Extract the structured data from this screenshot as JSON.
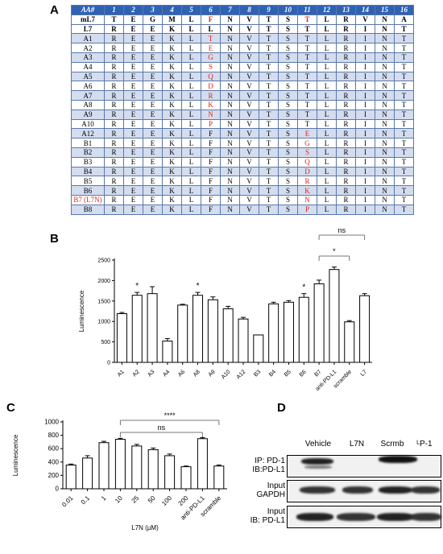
{
  "panels": {
    "a": "A",
    "b": "B",
    "c": "C",
    "d": "D"
  },
  "table": {
    "header": [
      "AA#",
      "1",
      "2",
      "3",
      "4",
      "5",
      "6",
      "7",
      "8",
      "9",
      "10",
      "11",
      "12",
      "13",
      "14",
      "15",
      "16"
    ],
    "rows": [
      {
        "label": "mL7",
        "cells": [
          "T",
          "E",
          "G",
          "M",
          "L",
          "F",
          "N",
          "V",
          "T",
          "S",
          "T",
          "L",
          "R",
          "V",
          "N",
          "A"
        ],
        "red": [
          5,
          10
        ],
        "style": "bold"
      },
      {
        "label": "L7",
        "cells": [
          "R",
          "E",
          "E",
          "K",
          "L",
          "L",
          "N",
          "V",
          "T",
          "S",
          "T",
          "L",
          "R",
          "I",
          "N",
          "T"
        ],
        "red": [],
        "style": "bold"
      },
      {
        "label": "A1",
        "cells": [
          "R",
          "E",
          "E",
          "K",
          "L",
          "T",
          "N",
          "V",
          "T",
          "S",
          "T",
          "L",
          "R",
          "I",
          "N",
          "T"
        ],
        "red": [
          5
        ]
      },
      {
        "label": "A2",
        "cells": [
          "R",
          "E",
          "E",
          "K",
          "L",
          "E",
          "N",
          "V",
          "T",
          "S",
          "T",
          "L",
          "R",
          "I",
          "N",
          "T"
        ],
        "red": [
          5
        ]
      },
      {
        "label": "A3",
        "cells": [
          "R",
          "E",
          "E",
          "K",
          "L",
          "G",
          "N",
          "V",
          "T",
          "S",
          "T",
          "L",
          "R",
          "I",
          "N",
          "T"
        ],
        "red": [
          5
        ]
      },
      {
        "label": "A4",
        "cells": [
          "R",
          "E",
          "E",
          "K",
          "L",
          "S",
          "N",
          "V",
          "T",
          "S",
          "T",
          "L",
          "R",
          "I",
          "N",
          "T"
        ],
        "red": [
          5
        ]
      },
      {
        "label": "A5",
        "cells": [
          "R",
          "E",
          "E",
          "K",
          "L",
          "Q",
          "N",
          "V",
          "T",
          "S",
          "T",
          "L",
          "R",
          "I",
          "N",
          "T"
        ],
        "red": [
          5
        ]
      },
      {
        "label": "A6",
        "cells": [
          "R",
          "E",
          "E",
          "K",
          "L",
          "D",
          "N",
          "V",
          "T",
          "S",
          "T",
          "L",
          "R",
          "I",
          "N",
          "T"
        ],
        "red": [
          5
        ]
      },
      {
        "label": "A7",
        "cells": [
          "R",
          "E",
          "E",
          "K",
          "L",
          "R",
          "N",
          "V",
          "T",
          "S",
          "T",
          "L",
          "R",
          "I",
          "N",
          "T"
        ],
        "red": [
          5
        ]
      },
      {
        "label": "A8",
        "cells": [
          "R",
          "E",
          "E",
          "K",
          "L",
          "K",
          "N",
          "V",
          "T",
          "S",
          "T",
          "L",
          "R",
          "I",
          "N",
          "T"
        ],
        "red": [
          5
        ]
      },
      {
        "label": "A9",
        "cells": [
          "R",
          "E",
          "E",
          "K",
          "L",
          "N",
          "N",
          "V",
          "T",
          "S",
          "T",
          "L",
          "R",
          "I",
          "N",
          "T"
        ],
        "red": [
          5
        ]
      },
      {
        "label": "A10",
        "cells": [
          "R",
          "E",
          "E",
          "K",
          "L",
          "P",
          "N",
          "V",
          "T",
          "S",
          "T",
          "L",
          "R",
          "I",
          "N",
          "T"
        ],
        "red": [
          5
        ]
      },
      {
        "label": "A12",
        "cells": [
          "R",
          "E",
          "E",
          "K",
          "L",
          "F",
          "N",
          "V",
          "T",
          "S",
          "E",
          "L",
          "R",
          "I",
          "N",
          "T"
        ],
        "red": [
          10
        ]
      },
      {
        "label": "B1",
        "cells": [
          "R",
          "E",
          "E",
          "K",
          "L",
          "F",
          "N",
          "V",
          "T",
          "S",
          "G",
          "L",
          "R",
          "I",
          "N",
          "T"
        ],
        "red": [
          10
        ]
      },
      {
        "label": "B2",
        "cells": [
          "R",
          "E",
          "E",
          "K",
          "L",
          "F",
          "N",
          "V",
          "T",
          "S",
          "S",
          "L",
          "R",
          "I",
          "N",
          "T"
        ],
        "red": [
          10
        ]
      },
      {
        "label": "B3",
        "cells": [
          "R",
          "E",
          "E",
          "K",
          "L",
          "F",
          "N",
          "V",
          "T",
          "S",
          "Q",
          "L",
          "R",
          "I",
          "N",
          "T"
        ],
        "red": [
          10
        ]
      },
      {
        "label": "B4",
        "cells": [
          "R",
          "E",
          "E",
          "K",
          "L",
          "F",
          "N",
          "V",
          "T",
          "S",
          "D",
          "L",
          "R",
          "I",
          "N",
          "T"
        ],
        "red": [
          10
        ]
      },
      {
        "label": "B5",
        "cells": [
          "R",
          "E",
          "E",
          "K",
          "L",
          "F",
          "N",
          "V",
          "T",
          "S",
          "R",
          "L",
          "R",
          "I",
          "N",
          "T"
        ],
        "red": [
          10
        ]
      },
      {
        "label": "B6",
        "cells": [
          "R",
          "E",
          "E",
          "K",
          "L",
          "F",
          "N",
          "V",
          "T",
          "S",
          "K",
          "L",
          "R",
          "I",
          "N",
          "T"
        ],
        "red": [
          10
        ]
      },
      {
        "label": "B7 (L7N)",
        "cells": [
          "R",
          "E",
          "E",
          "K",
          "L",
          "F",
          "N",
          "V",
          "T",
          "S",
          "N",
          "L",
          "R",
          "I",
          "N",
          "T"
        ],
        "red": [
          10
        ],
        "labelRed": true
      },
      {
        "label": "B8",
        "cells": [
          "R",
          "E",
          "E",
          "K",
          "L",
          "F",
          "N",
          "V",
          "T",
          "S",
          "P",
          "L",
          "R",
          "I",
          "N",
          "T"
        ],
        "red": [
          10
        ]
      }
    ]
  },
  "chart_data": [
    {
      "type": "bar",
      "ylabel": "Luminescence",
      "ylim": [
        0,
        2500
      ],
      "yticks": [
        0,
        500,
        1000,
        1500,
        2000,
        2500
      ],
      "categories": [
        "A1",
        "A2",
        "A3",
        "A4",
        "A6",
        "A8",
        "A9",
        "A10",
        "A12",
        "B3",
        "B4",
        "B5",
        "B6",
        "B7",
        "anti-PD-L1",
        "scramble",
        "L7"
      ],
      "values": [
        1190,
        1640,
        1680,
        520,
        1400,
        1640,
        1530,
        1310,
        1060,
        670,
        1430,
        1470,
        1590,
        1920,
        2270,
        990,
        1630
      ],
      "errors": [
        30,
        70,
        170,
        60,
        20,
        70,
        70,
        60,
        40,
        0,
        40,
        40,
        90,
        90,
        60,
        30,
        50
      ],
      "stars": [
        {
          "index": 1,
          "label": "*"
        },
        {
          "index": 5,
          "label": "*"
        },
        {
          "index": 12,
          "label": "*"
        }
      ],
      "brackets": [
        {
          "from": 13,
          "to": 16,
          "label": "ns"
        },
        {
          "from": 13,
          "to": 15,
          "label": "*"
        }
      ]
    },
    {
      "type": "bar",
      "ylabel": "Luminescence",
      "xlabel": "L7N (µM)",
      "ylim": [
        0,
        1000
      ],
      "yticks": [
        0,
        200,
        400,
        600,
        800,
        1000
      ],
      "categories": [
        "0.01",
        "0.1",
        "1",
        "10",
        "25",
        "50",
        "100",
        "200",
        "anti-PD-L1",
        "scramble"
      ],
      "values": [
        355,
        460,
        690,
        740,
        640,
        585,
        495,
        330,
        750,
        340
      ],
      "errors": [
        15,
        35,
        20,
        15,
        25,
        25,
        25,
        10,
        15,
        15
      ],
      "brackets": [
        {
          "from": 3,
          "to": 9,
          "label": "****"
        },
        {
          "from": 3,
          "to": 8,
          "label": "ns"
        }
      ]
    }
  ],
  "blot": {
    "columns": [
      "Vehicle",
      "L7N",
      "Scrmb",
      "ᴸP-1"
    ],
    "rows": [
      {
        "label1": "IP: PD-1",
        "label2": "IB:PD-L1"
      },
      {
        "label1": "Input",
        "label2": "GAPDH"
      },
      {
        "label1": "Input",
        "label2": "IB: PD-L1"
      }
    ]
  }
}
